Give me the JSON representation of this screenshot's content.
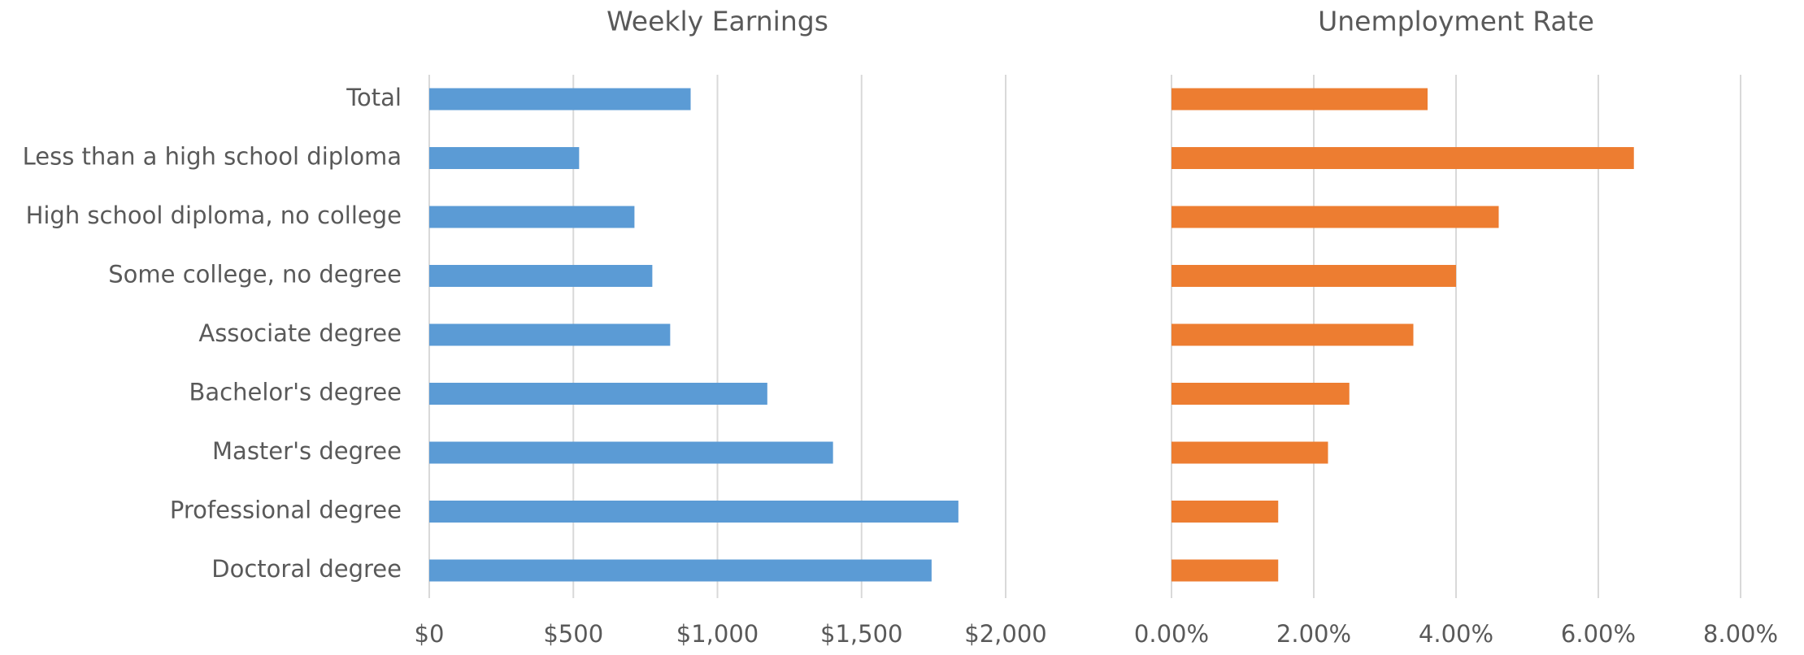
{
  "chart_data": [
    {
      "type": "bar",
      "orientation": "horizontal",
      "title": "Weekly Earnings",
      "categories": [
        "Total",
        "Less than a high school diploma",
        "High school diploma, no college",
        "Some college, no degree",
        "Associate degree",
        "Bachelor's degree",
        "Master's degree",
        "Professional degree",
        "Doctoral degree"
      ],
      "values": [
        907,
        520,
        712,
        774,
        836,
        1173,
        1401,
        1836,
        1743
      ],
      "color": "#5b9bd5",
      "xlim": [
        0,
        2000
      ],
      "xticks": [
        {
          "value": 0,
          "label": "$0"
        },
        {
          "value": 500,
          "label": "$500"
        },
        {
          "value": 1000,
          "label": "$1,000"
        },
        {
          "value": 1500,
          "label": "$1,500"
        },
        {
          "value": 2000,
          "label": "$2,000"
        }
      ],
      "grid": true
    },
    {
      "type": "bar",
      "orientation": "horizontal",
      "title": "Unemployment Rate",
      "values": [
        3.6,
        6.5,
        4.6,
        4.0,
        3.4,
        2.5,
        2.2,
        1.5,
        1.5
      ],
      "color": "#ed7d31",
      "xlim": [
        0,
        8
      ],
      "xticks": [
        {
          "value": 0,
          "label": "0.00%"
        },
        {
          "value": 2,
          "label": "2.00%"
        },
        {
          "value": 4,
          "label": "4.00%"
        },
        {
          "value": 6,
          "label": "6.00%"
        },
        {
          "value": 8,
          "label": "8.00%"
        }
      ],
      "grid": true
    }
  ]
}
